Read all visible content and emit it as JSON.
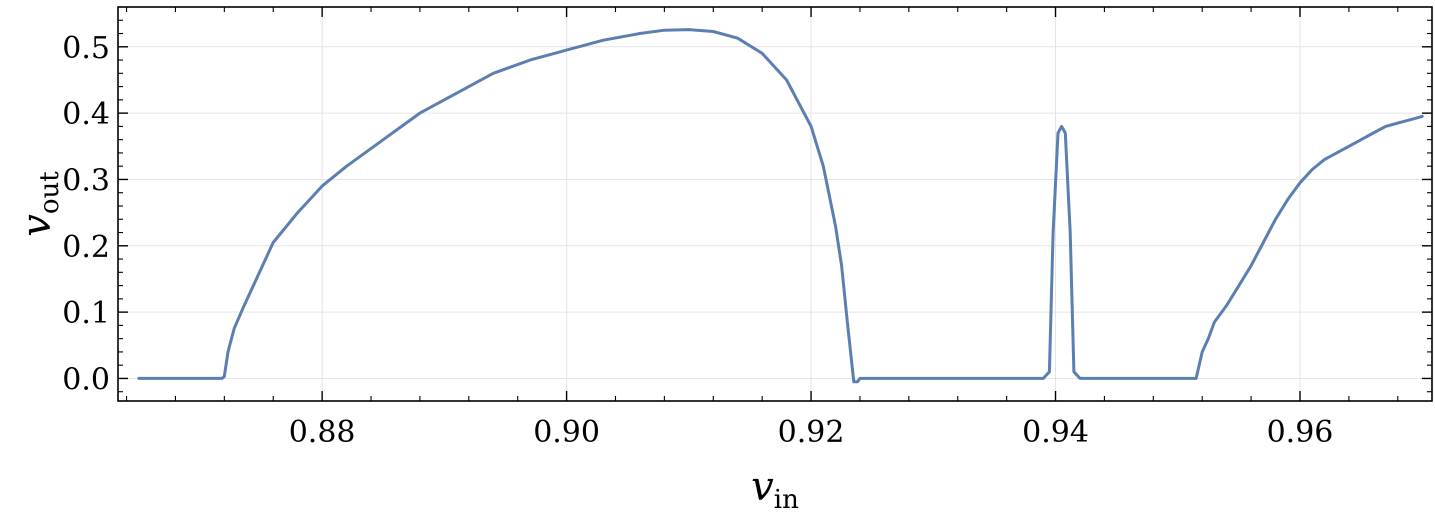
{
  "chart_data": {
    "type": "line",
    "title": "",
    "xlabel": {
      "main": "v",
      "sub": "in"
    },
    "ylabel": {
      "main": "v",
      "sub": "out"
    },
    "xlim": [
      0.8633,
      0.9708
    ],
    "ylim": [
      -0.034,
      0.56
    ],
    "xticks": [
      0.88,
      0.9,
      0.92,
      0.94,
      0.96
    ],
    "xtick_labels": [
      "0.88",
      "0.90",
      "0.92",
      "0.94",
      "0.96"
    ],
    "yticks": [
      0.0,
      0.1,
      0.2,
      0.3,
      0.4,
      0.5
    ],
    "ytick_labels": [
      "0.0",
      "0.1",
      "0.2",
      "0.3",
      "0.4",
      "0.5"
    ],
    "grid": true,
    "legend": "none",
    "series_color": "#5b7fb0",
    "series": [
      {
        "x": [
          0.865,
          0.868,
          0.871,
          0.8718,
          0.872,
          0.8723,
          0.8728,
          0.8735,
          0.8745,
          0.876,
          0.878,
          0.88,
          0.882,
          0.885,
          0.888,
          0.891,
          0.894,
          0.897,
          0.9,
          0.903,
          0.906,
          0.908,
          0.91,
          0.912,
          0.914,
          0.916,
          0.918,
          0.92,
          0.921,
          0.922,
          0.9225,
          0.923,
          0.9235,
          0.9238,
          0.924,
          0.9242,
          0.925,
          0.93,
          0.935,
          0.939,
          0.9395,
          0.9398,
          0.9402,
          0.9405,
          0.9408,
          0.9412,
          0.9415,
          0.942,
          0.946,
          0.95,
          0.9515,
          0.952,
          0.9525,
          0.953,
          0.954,
          0.955,
          0.956,
          0.957,
          0.958,
          0.959,
          0.96,
          0.961,
          0.962,
          0.963,
          0.964,
          0.965,
          0.966,
          0.967,
          0.968,
          0.969,
          0.97
        ],
        "y": [
          0.0,
          0.0,
          0.0,
          0.0,
          0.003,
          0.04,
          0.075,
          0.105,
          0.145,
          0.205,
          0.25,
          0.29,
          0.32,
          0.36,
          0.4,
          0.43,
          0.46,
          0.48,
          0.495,
          0.51,
          0.52,
          0.525,
          0.526,
          0.523,
          0.513,
          0.49,
          0.45,
          0.38,
          0.32,
          0.23,
          0.17,
          0.08,
          -0.005,
          -0.005,
          0.0,
          0.0,
          0.0,
          0.0,
          0.0,
          0.0,
          0.01,
          0.22,
          0.37,
          0.38,
          0.37,
          0.22,
          0.01,
          0.0,
          0.0,
          0.0,
          0.0,
          0.04,
          0.06,
          0.085,
          0.11,
          0.14,
          0.17,
          0.205,
          0.24,
          0.27,
          0.295,
          0.315,
          0.33,
          0.34,
          0.35,
          0.36,
          0.37,
          0.38,
          0.385,
          0.39,
          0.395
        ]
      }
    ]
  }
}
